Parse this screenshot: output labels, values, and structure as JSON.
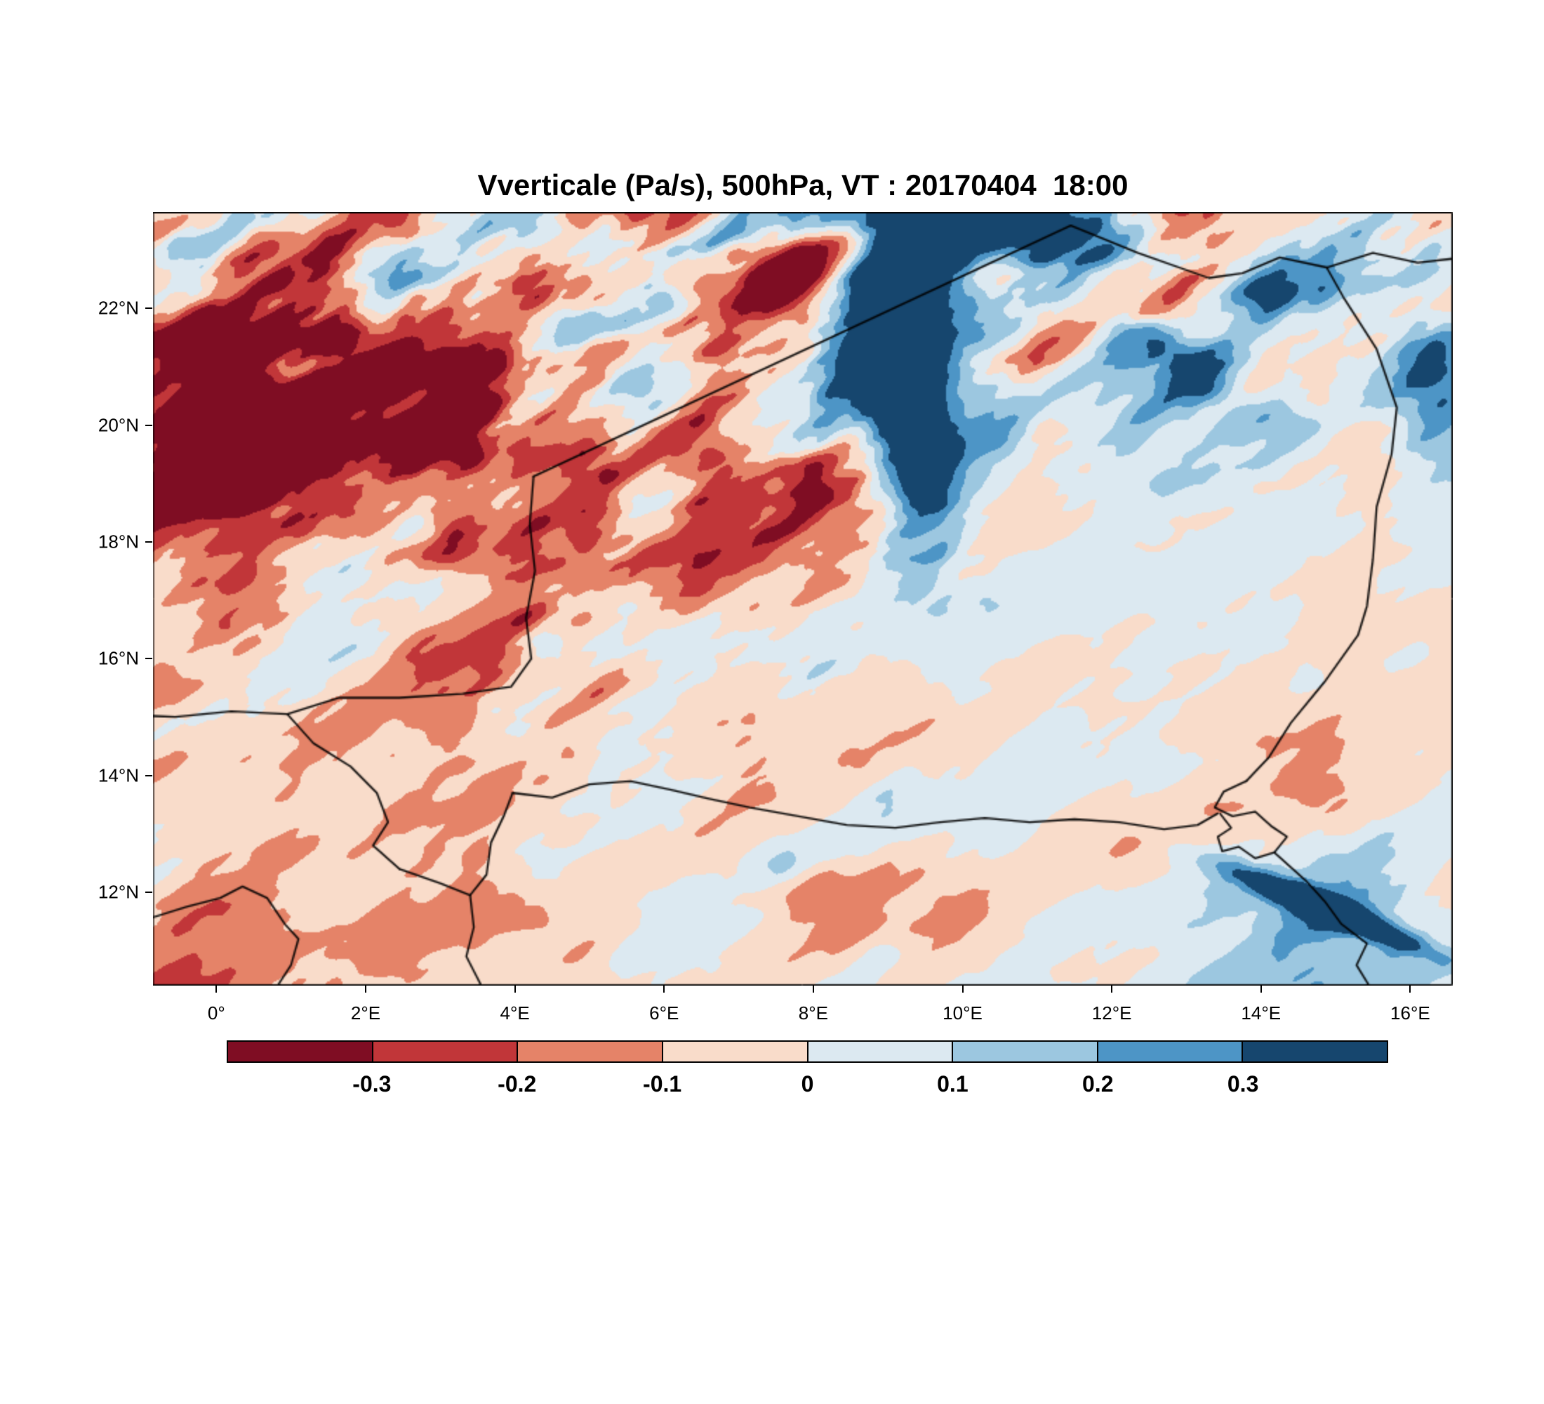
{
  "chart_data": {
    "type": "heatmap",
    "title": "Vverticale (Pa/s), 500hPa, VT : 20170404  18:00",
    "variable": "Vverticale",
    "units": "Pa/s",
    "level": "500hPa",
    "valid_time_label": "VT : 20170404  18:00",
    "x_axis": {
      "min": -0.85,
      "max": 16.57,
      "ticks": [
        {
          "label": "0°",
          "value": 0
        },
        {
          "label": "2°E",
          "value": 2
        },
        {
          "label": "4°E",
          "value": 4
        },
        {
          "label": "6°E",
          "value": 6
        },
        {
          "label": "8°E",
          "value": 8
        },
        {
          "label": "10°E",
          "value": 10
        },
        {
          "label": "12°E",
          "value": 12
        },
        {
          "label": "14°E",
          "value": 14
        },
        {
          "label": "16°E",
          "value": 16
        }
      ]
    },
    "y_axis": {
      "min": 10.4,
      "max": 23.65,
      "ticks": [
        {
          "label": "22°N",
          "value": 22
        },
        {
          "label": "20°N",
          "value": 20
        },
        {
          "label": "18°N",
          "value": 18
        },
        {
          "label": "16°N",
          "value": 16
        },
        {
          "label": "14°N",
          "value": 14
        },
        {
          "label": "12°N",
          "value": 12
        }
      ]
    },
    "levels": [
      -0.3,
      -0.2,
      -0.1,
      0,
      0.1,
      0.2,
      0.3
    ],
    "colorbar_labels": [
      "-0.3",
      "-0.2",
      "-0.1",
      "0",
      "0.1",
      "0.2",
      "0.3"
    ],
    "palette": [
      "#7f0d23",
      "#c13639",
      "#e58368",
      "#f9dcca",
      "#dce9f1",
      "#9cc7e0",
      "#4d95c6",
      "#16466e"
    ],
    "field_estimate": {
      "lons": [
        -0.9,
        1.3,
        3.5,
        5.7,
        7.9,
        9.3,
        11,
        13,
        14.8,
        16.6
      ],
      "lats": [
        23.65,
        22.5,
        21,
        19.5,
        18,
        16.5,
        15,
        13.5,
        12,
        10.4
      ],
      "mean": [
        [
          -0.1,
          -0.1,
          0.08,
          -0.05,
          -0.12,
          0.3,
          0.22,
          -0.05,
          0.15,
          -0.05
        ],
        [
          -0.15,
          -0.18,
          0.05,
          -0.1,
          -0.05,
          0.32,
          0.1,
          -0.1,
          0.18,
          -0.05
        ],
        [
          -0.18,
          -0.25,
          -0.15,
          -0.02,
          -0.1,
          0.32,
          0.05,
          0.08,
          0.02,
          0.12
        ],
        [
          -0.12,
          -0.18,
          -0.08,
          -0.05,
          -0.15,
          0.28,
          0.03,
          0.1,
          0.03,
          0.08
        ],
        [
          -0.08,
          -0.05,
          -0.05,
          -0.12,
          -0.15,
          0.12,
          0.07,
          0.03,
          0.0,
          0.03
        ],
        [
          -0.05,
          -0.05,
          -0.08,
          -0.08,
          -0.05,
          0.0,
          0.07,
          0.03,
          0.0,
          -0.03
        ],
        [
          -0.03,
          -0.05,
          -0.08,
          -0.05,
          -0.03,
          -0.03,
          0.03,
          0.0,
          -0.07,
          -0.06
        ],
        [
          -0.03,
          -0.03,
          -0.05,
          -0.03,
          -0.03,
          0.06,
          0.0,
          -0.03,
          -0.08,
          0.06
        ],
        [
          -0.06,
          -0.03,
          -0.03,
          -0.03,
          -0.06,
          0.0,
          0.03,
          0.06,
          0.18,
          -0.03
        ],
        [
          -0.12,
          -0.03,
          0.0,
          -0.05,
          -0.03,
          -0.03,
          0.0,
          0.03,
          0.12,
          -0.03
        ]
      ],
      "noise_amplitude": [
        [
          0.65,
          0.65,
          0.6,
          0.7,
          0.7,
          0.5,
          0.5,
          0.7,
          0.55,
          0.55
        ],
        [
          0.7,
          0.8,
          0.65,
          0.7,
          0.6,
          0.5,
          0.55,
          0.6,
          0.5,
          0.5
        ],
        [
          0.75,
          0.9,
          0.8,
          0.6,
          0.6,
          0.4,
          0.5,
          0.5,
          0.35,
          0.35
        ],
        [
          0.7,
          0.85,
          0.6,
          0.6,
          0.6,
          0.35,
          0.25,
          0.3,
          0.25,
          0.2
        ],
        [
          0.5,
          0.55,
          0.55,
          0.55,
          0.5,
          0.45,
          0.2,
          0.17,
          0.17,
          0.17
        ],
        [
          0.33,
          0.45,
          0.5,
          0.45,
          0.33,
          0.25,
          0.2,
          0.17,
          0.2,
          0.17
        ],
        [
          0.25,
          0.33,
          0.45,
          0.33,
          0.25,
          0.2,
          0.17,
          0.17,
          0.25,
          0.2
        ],
        [
          0.25,
          0.25,
          0.33,
          0.25,
          0.25,
          0.2,
          0.17,
          0.2,
          0.28,
          0.25
        ],
        [
          0.28,
          0.25,
          0.25,
          0.25,
          0.25,
          0.2,
          0.17,
          0.2,
          0.25,
          0.2
        ],
        [
          0.33,
          0.25,
          0.2,
          0.25,
          0.2,
          0.17,
          0.17,
          0.2,
          0.25,
          0.17
        ]
      ],
      "features": [
        {
          "lon": 1.6,
          "lat": 21.2,
          "rx": 2.6,
          "ry": 1.6,
          "rot": -25,
          "dv": -0.22
        },
        {
          "lon": 9.15,
          "lat": 20.8,
          "rx": 0.55,
          "ry": 2.6,
          "rot": 8,
          "dv": 0.42
        },
        {
          "lon": 7.2,
          "lat": 18.5,
          "rx": 2.0,
          "ry": 0.55,
          "rot": 28,
          "dv": -0.3
        },
        {
          "lon": 7.6,
          "lat": 22.9,
          "rx": 1.4,
          "ry": 0.5,
          "rot": 10,
          "dv": -0.28
        },
        {
          "lon": 11.7,
          "lat": 23.1,
          "rx": 1.6,
          "ry": 0.6,
          "rot": -15,
          "dv": 0.4
        },
        {
          "lon": 12.6,
          "lat": 21.3,
          "rx": 1.8,
          "ry": 0.45,
          "rot": -40,
          "dv": 0.26
        },
        {
          "lon": 16.3,
          "lat": 20.8,
          "rx": 0.5,
          "ry": 1.2,
          "rot": 0,
          "dv": 0.3
        },
        {
          "lon": 14.9,
          "lat": 11.7,
          "rx": 1.5,
          "ry": 0.22,
          "rot": -28,
          "dv": 0.55
        }
      ]
    },
    "borders": [
      {
        "name": "algeria-niger",
        "points": [
          [
            4.25,
            19.12
          ],
          [
            11.45,
            23.42
          ]
        ]
      },
      {
        "name": "niger-libya",
        "points": [
          [
            11.45,
            23.42
          ],
          [
            12.35,
            22.95
          ],
          [
            13.3,
            22.52
          ],
          [
            13.75,
            22.6
          ],
          [
            14.25,
            22.87
          ],
          [
            14.88,
            22.7
          ]
        ]
      },
      {
        "name": "libya-chad-north",
        "points": [
          [
            14.88,
            22.7
          ],
          [
            15.5,
            22.95
          ],
          [
            16.1,
            22.78
          ],
          [
            16.57,
            22.85
          ]
        ]
      },
      {
        "name": "niger-chad",
        "points": [
          [
            14.88,
            22.7
          ],
          [
            15.1,
            22.2
          ],
          [
            15.55,
            21.3
          ],
          [
            15.82,
            20.3
          ],
          [
            15.75,
            19.5
          ],
          [
            15.55,
            18.6
          ],
          [
            15.5,
            17.7
          ],
          [
            15.42,
            16.9
          ],
          [
            15.3,
            16.4
          ],
          [
            14.85,
            15.6
          ],
          [
            14.4,
            14.9
          ],
          [
            14.1,
            14.3
          ],
          [
            13.8,
            13.9
          ]
        ]
      },
      {
        "name": "lake-chad",
        "points": [
          [
            13.8,
            13.9
          ],
          [
            13.5,
            13.72
          ],
          [
            13.38,
            13.45
          ],
          [
            13.62,
            13.3
          ],
          [
            13.92,
            13.38
          ],
          [
            14.15,
            13.12
          ],
          [
            14.35,
            12.95
          ],
          [
            14.18,
            12.68
          ],
          [
            13.92,
            12.58
          ],
          [
            13.7,
            12.78
          ],
          [
            13.48,
            12.7
          ],
          [
            13.42,
            12.95
          ],
          [
            13.6,
            13.1
          ],
          [
            13.45,
            13.35
          ]
        ]
      },
      {
        "name": "chad-cameroon",
        "points": [
          [
            14.18,
            12.68
          ],
          [
            14.6,
            12.2
          ],
          [
            14.85,
            11.85
          ],
          [
            15.08,
            11.45
          ],
          [
            15.42,
            11.12
          ],
          [
            15.28,
            10.75
          ],
          [
            15.45,
            10.4
          ]
        ]
      },
      {
        "name": "mali-niger",
        "points": [
          [
            4.25,
            19.12
          ],
          [
            4.2,
            18.3
          ],
          [
            4.27,
            17.5
          ],
          [
            4.15,
            16.7
          ],
          [
            4.22,
            16.0
          ],
          [
            3.95,
            15.52
          ],
          [
            3.3,
            15.4
          ],
          [
            2.45,
            15.33
          ],
          [
            1.65,
            15.33
          ],
          [
            0.95,
            15.05
          ],
          [
            0.2,
            15.1
          ],
          [
            -0.55,
            15.0
          ],
          [
            -0.9,
            15.02
          ]
        ]
      },
      {
        "name": "burkina-niger",
        "points": [
          [
            0.95,
            15.05
          ],
          [
            1.3,
            14.55
          ],
          [
            1.8,
            14.15
          ],
          [
            2.15,
            13.7
          ],
          [
            2.3,
            13.2
          ],
          [
            2.1,
            12.8
          ],
          [
            2.45,
            12.4
          ]
        ]
      },
      {
        "name": "niger-benin",
        "points": [
          [
            2.45,
            12.4
          ],
          [
            3.0,
            12.15
          ],
          [
            3.4,
            11.95
          ],
          [
            3.62,
            12.3
          ],
          [
            3.68,
            12.85
          ],
          [
            3.85,
            13.3
          ],
          [
            3.97,
            13.7
          ]
        ]
      },
      {
        "name": "benin-nigeria",
        "points": [
          [
            3.4,
            11.95
          ],
          [
            3.45,
            11.4
          ],
          [
            3.35,
            10.9
          ],
          [
            3.55,
            10.4
          ]
        ]
      },
      {
        "name": "niger-nigeria",
        "points": [
          [
            3.97,
            13.7
          ],
          [
            4.5,
            13.62
          ],
          [
            5.0,
            13.85
          ],
          [
            5.55,
            13.9
          ],
          [
            6.1,
            13.75
          ],
          [
            6.6,
            13.6
          ],
          [
            7.15,
            13.45
          ],
          [
            7.8,
            13.3
          ],
          [
            8.45,
            13.15
          ],
          [
            9.1,
            13.1
          ],
          [
            9.7,
            13.2
          ],
          [
            10.3,
            13.27
          ],
          [
            10.9,
            13.2
          ],
          [
            11.5,
            13.25
          ],
          [
            12.1,
            13.2
          ],
          [
            12.7,
            13.08
          ],
          [
            13.15,
            13.15
          ],
          [
            13.42,
            13.35
          ]
        ]
      },
      {
        "name": "burkina-benin",
        "points": [
          [
            -0.9,
            11.55
          ],
          [
            -0.4,
            11.75
          ],
          [
            0.05,
            11.9
          ],
          [
            0.35,
            12.1
          ],
          [
            0.68,
            11.9
          ],
          [
            0.92,
            11.45
          ],
          [
            1.1,
            11.2
          ],
          [
            1.0,
            10.75
          ],
          [
            0.82,
            10.4
          ]
        ]
      }
    ]
  }
}
